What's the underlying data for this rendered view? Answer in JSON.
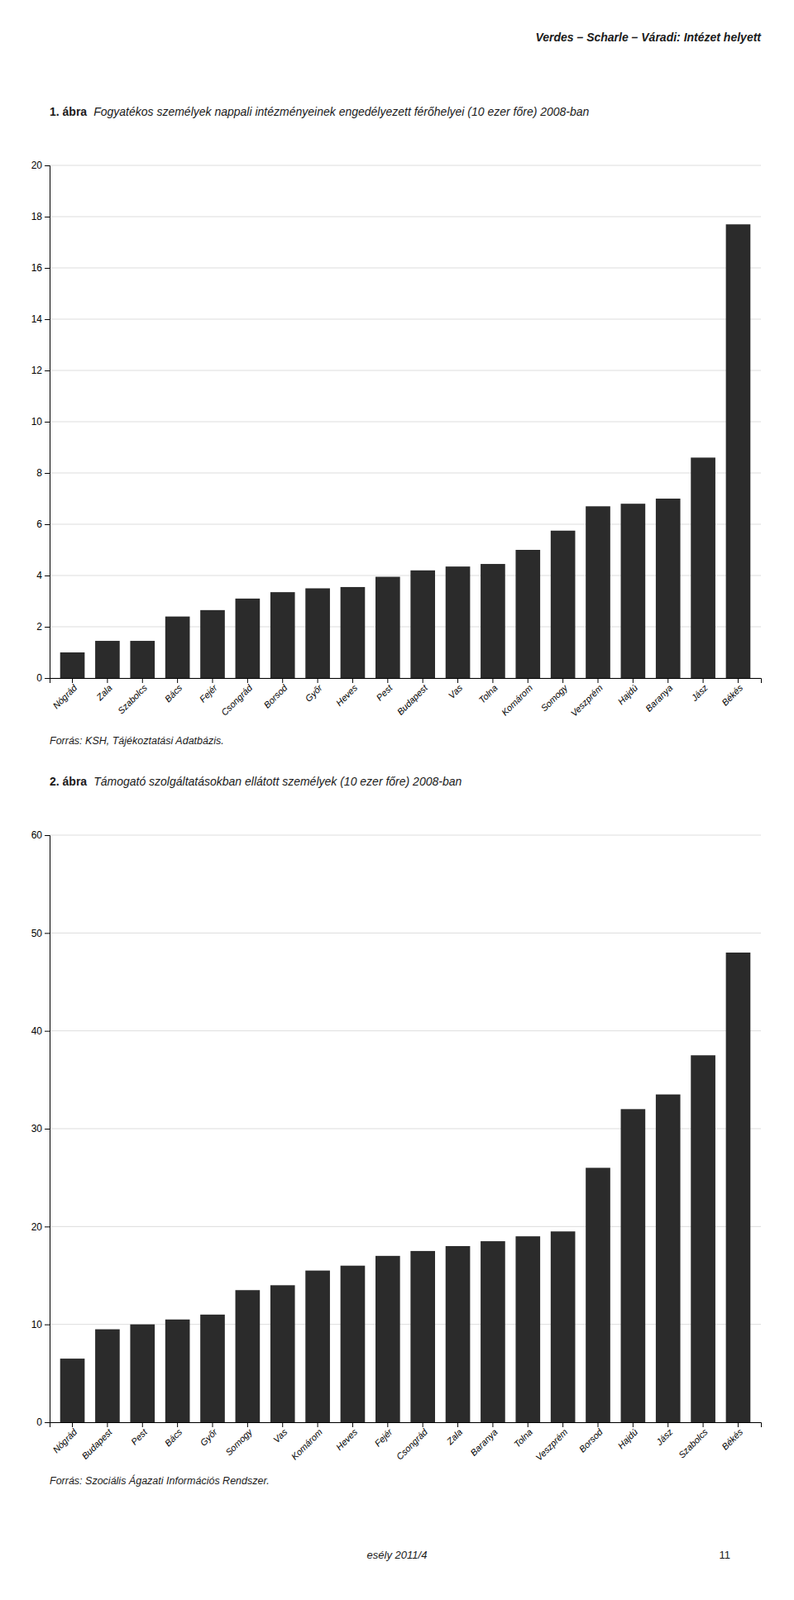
{
  "chart_data": [
    {
      "type": "bar",
      "title": "1. ábra",
      "subtitle": "Fogyatékos személyek nappali intézményeinek engedélyezett férőhelyei (10 ezer főre) 2008-ban",
      "categories": [
        "Nógrád",
        "Zala",
        "Szabolcs",
        "Bács",
        "Fejér",
        "Csongrád",
        "Borsod",
        "Győr",
        "Heves",
        "Pest",
        "Budapest",
        "Vas",
        "Tolna",
        "Komárom",
        "Somogy",
        "Veszprém",
        "Hajdú",
        "Baranya",
        "Jász",
        "Békés"
      ],
      "values": [
        1.0,
        1.45,
        1.45,
        2.4,
        2.65,
        3.1,
        3.35,
        3.5,
        3.55,
        3.95,
        4.2,
        4.35,
        4.45,
        5.0,
        5.75,
        6.7,
        6.8,
        7.0,
        8.6,
        17.7
      ],
      "color": "#2b2b2b",
      "ylim": [
        0,
        20
      ],
      "yticks": [
        0,
        2,
        4,
        6,
        8,
        10,
        12,
        14,
        16,
        18,
        20
      ],
      "grid": true,
      "source": "Forrás: KSH, Tájékoztatási Adatbázis."
    },
    {
      "type": "bar",
      "title": "2. ábra",
      "subtitle": "Támogató szolgáltatásokban ellátott személyek (10 ezer főre) 2008-ban",
      "categories": [
        "Nógrád",
        "Budapest",
        "Pest",
        "Bács",
        "Győr",
        "Somogy",
        "Vas",
        "Komárom",
        "Heves",
        "Fejér",
        "Csongrád",
        "Zala",
        "Baranya",
        "Tolna",
        "Veszprém",
        "Borsod",
        "Hajdú",
        "Jász",
        "Szabolcs",
        "Békés"
      ],
      "values": [
        6.5,
        9.5,
        10.0,
        10.5,
        11.0,
        13.5,
        14.0,
        15.5,
        16.0,
        17.0,
        17.5,
        18.0,
        18.5,
        19.0,
        19.5,
        26.0,
        32.0,
        33.5,
        37.5,
        48.0
      ],
      "color": "#2b2b2b",
      "ylim": [
        0,
        60
      ],
      "yticks": [
        0,
        10,
        20,
        30,
        40,
        50,
        60
      ],
      "grid": true,
      "source": "Forrás: Szociális Ágazati Információs Rendszer."
    }
  ],
  "header": "Verdes – Scharle – Váradi: Intézet helyett",
  "footer": "esély 2011/4",
  "page_number": "11"
}
